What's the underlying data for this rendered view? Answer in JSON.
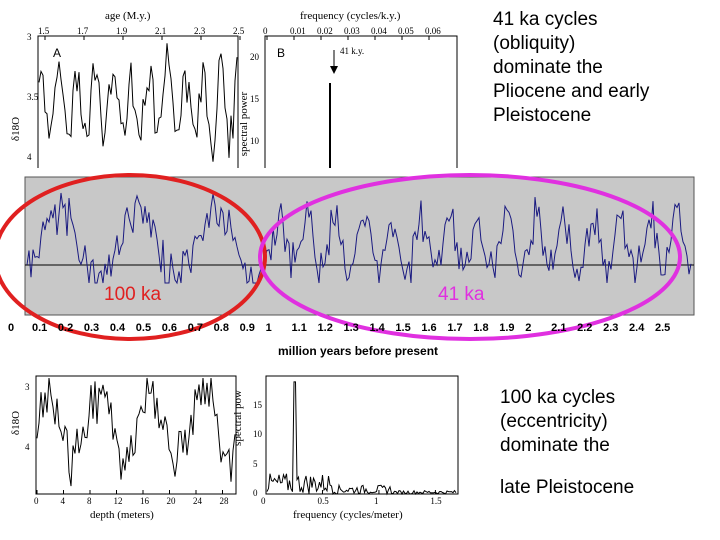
{
  "captions": {
    "top_right": [
      "41 ka cycles",
      "(obliquity)",
      "dominate the",
      "Pliocene and early",
      "Pleistocene"
    ],
    "bottom_right": [
      "100 ka cycles",
      "(eccentricity)",
      "dominate the",
      "late Pleistocene"
    ]
  },
  "colors": {
    "red_ellipse": "#e02020",
    "magenta_ellipse": "#e030e0",
    "band_bg": "#c8c8c8",
    "series_line": "#1a1a80",
    "label_100ka": "#e02020",
    "label_41ka": "#e030e0"
  },
  "chart_data": [
    {
      "id": "top_left_record",
      "type": "line",
      "title": "age (M.y.)",
      "panel_letter": "A",
      "top_ticks": [
        "1.5",
        "1.7",
        "1.9",
        "2.1",
        "2.3",
        "2.5"
      ],
      "ylabel": "δ18O",
      "y_ticks": [
        "3",
        "3.5",
        "4"
      ],
      "note": "oscillating benthic δ18O record"
    },
    {
      "id": "top_spectrum",
      "type": "line",
      "title": "frequency (cycles/k.y.)",
      "panel_letter": "B",
      "top_ticks": [
        "0",
        "0.01",
        "0.02",
        "0.03",
        "0.04",
        "0.05",
        "0.06"
      ],
      "ylabel": "spectral power",
      "y_ticks": [
        "10",
        "15",
        "20"
      ],
      "annotation": "41 k.y."
    },
    {
      "id": "main_record",
      "type": "line",
      "xlabel": "million years before present",
      "x_ticks": [
        "0",
        "0.1",
        "0.2",
        "0.3",
        "0.4",
        "0.5",
        "0.6",
        "0.7",
        "0.8",
        "0.9",
        "1",
        "1.1",
        "1.2",
        "1.3",
        "1.4",
        "1.5",
        "1.6",
        "1.7",
        "1.8",
        "1.9",
        "2",
        "2.1",
        "2.2",
        "2.3",
        "2.4",
        "2.5"
      ],
      "xlim": [
        0,
        2.5
      ],
      "labels": {
        "left": "100 ka",
        "right": "41 ka"
      }
    },
    {
      "id": "bottom_left_record",
      "type": "line",
      "xlabel": "depth (meters)",
      "x_ticks": [
        "0",
        "4",
        "8",
        "12",
        "16",
        "20",
        "24",
        "28"
      ],
      "xlim": [
        0,
        30
      ],
      "ylabel": "δ18O",
      "y_ticks": [
        "3",
        "4"
      ]
    },
    {
      "id": "bottom_spectrum",
      "type": "line",
      "xlabel": "frequency (cycles/meter)",
      "x_ticks": [
        "0",
        "0.5",
        "1",
        "1.5"
      ],
      "xlim": [
        0,
        1.7
      ],
      "ylabel": "spectral pow",
      "y_ticks": [
        "0",
        "5",
        "10",
        "15"
      ],
      "ylim": [
        0,
        20
      ]
    }
  ]
}
